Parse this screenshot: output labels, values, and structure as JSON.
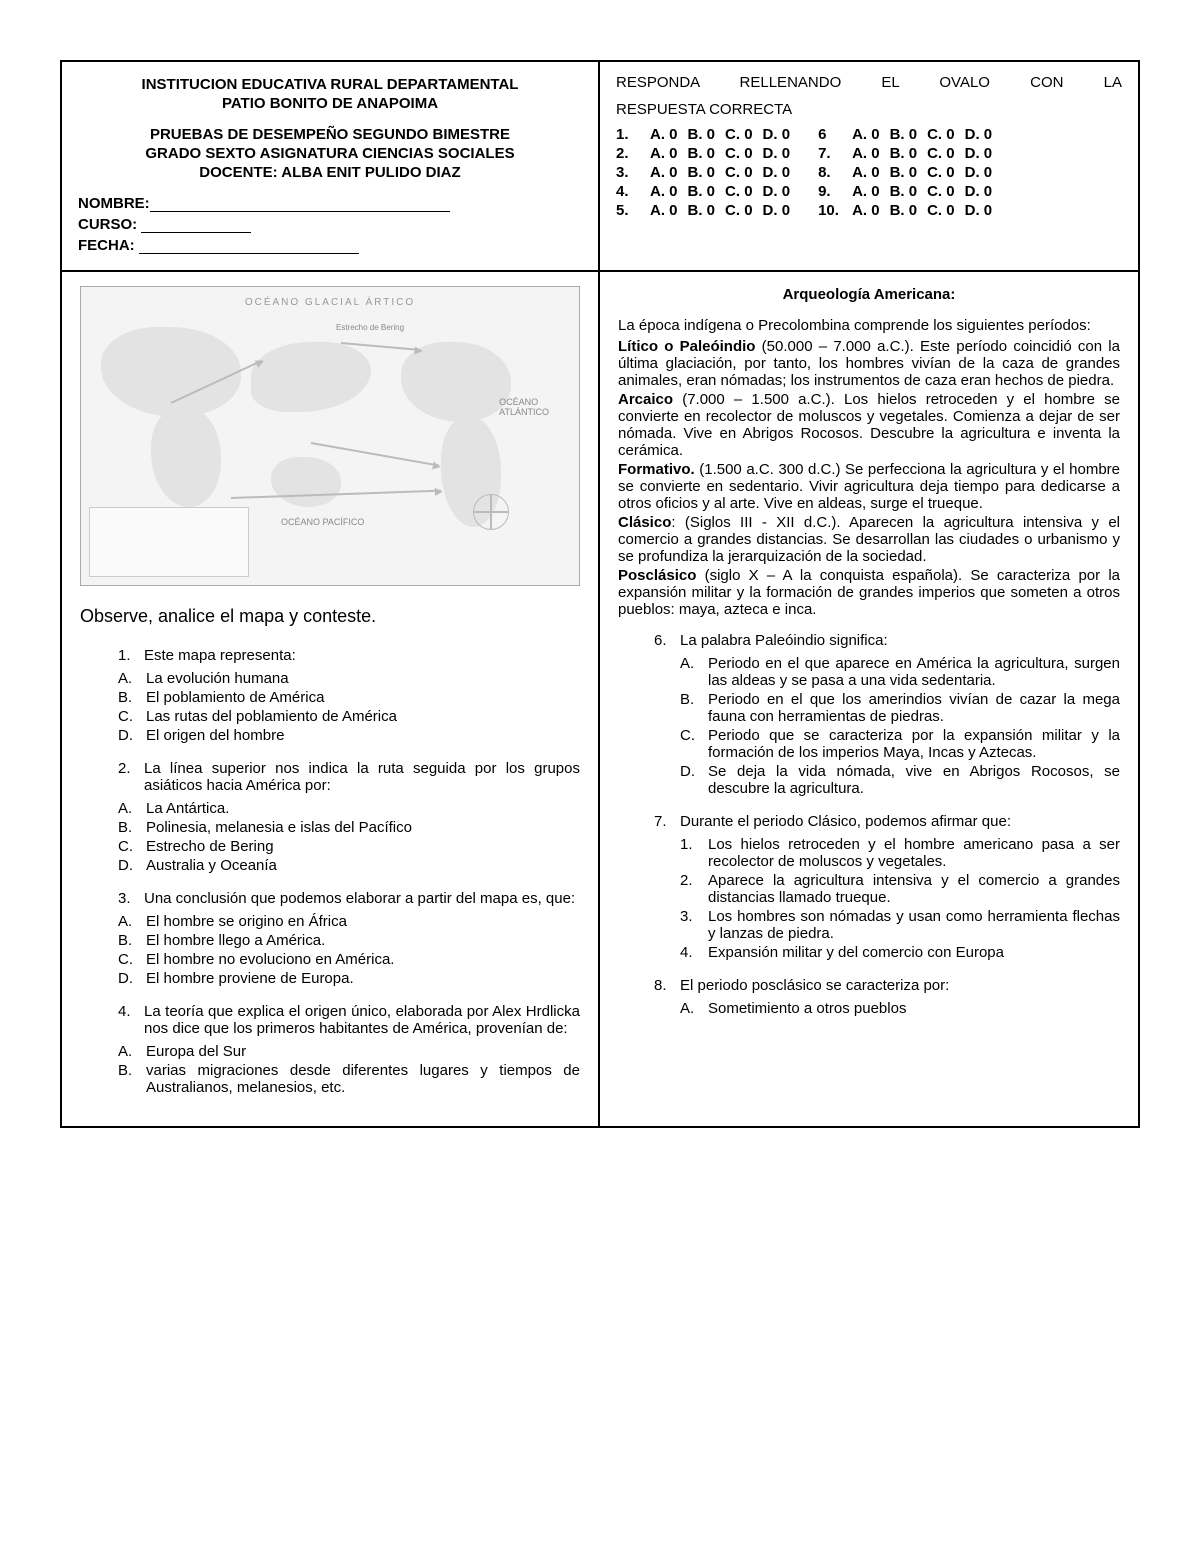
{
  "header": {
    "line1": "INSTITUCION EDUCATIVA RURAL DEPARTAMENTAL",
    "line2": "PATIO BONITO DE ANAPOIMA",
    "line3": "PRUEBAS DE DESEMPEÑO  SEGUNDO BIMESTRE",
    "line4": "GRADO SEXTO   ASIGNATURA  CIENCIAS SOCIALES",
    "line5": "DOCENTE: ALBA ENIT PULIDO DIAZ",
    "field_nombre": "NOMBRE:",
    "field_curso": "CURSO:",
    "field_fecha": "FECHA:"
  },
  "instructions": {
    "line1": "RESPONDA   RELLENANDO   EL   OVALO   CON   LA",
    "line2": "RESPUESTA CORRECTA"
  },
  "answer_sheet": {
    "left_rows": [
      "1.",
      "2.",
      "3.",
      "4.",
      "5."
    ],
    "right_rows": [
      "6",
      "7.",
      "8.",
      "9.",
      "10."
    ],
    "choices": [
      "A. 0",
      "B. 0",
      "C. 0",
      "D. 0"
    ]
  },
  "map": {
    "title": "OCÉANO GLACIAL ÁRTICO",
    "labels": {
      "atlantico": "OCÉANO\nATLÁNTICO",
      "pacifico": "OCÉANO PACÍFICO",
      "bering": "Estrecho de Bering"
    },
    "legend_text": ""
  },
  "left": {
    "prompt": "Observe, analice el mapa y conteste.",
    "questions": [
      {
        "num": "1.",
        "stem": "Este mapa representa:",
        "opts": [
          {
            "l": "A.",
            "t": "La evolución humana"
          },
          {
            "l": "B.",
            "t": "El poblamiento de América"
          },
          {
            "l": "C.",
            "t": "Las rutas del poblamiento de América"
          },
          {
            "l": "D.",
            "t": "El origen del hombre"
          }
        ]
      },
      {
        "num": "2.",
        "stem": "La línea superior nos indica la ruta seguida por los grupos asiáticos hacia América por:",
        "opts": [
          {
            "l": "A.",
            "t": "La Antártica."
          },
          {
            "l": "B.",
            "t": "Polinesia, melanesia e islas del Pacífico"
          },
          {
            "l": "C.",
            "t": "Estrecho de Bering"
          },
          {
            "l": "D.",
            "t": "Australia y Oceanía"
          }
        ]
      },
      {
        "num": "3.",
        "stem": "Una conclusión que  podemos elaborar a partir del mapa es, que:",
        "opts": [
          {
            "l": "A.",
            "t": "El hombre se origino en África"
          },
          {
            "l": "B.",
            "t": "El hombre llego a América."
          },
          {
            "l": "C.",
            "t": "El hombre no evoluciono en América."
          },
          {
            "l": "D.",
            "t": "El hombre proviene de Europa."
          }
        ]
      },
      {
        "num": "4.",
        "stem": "La teoría que explica el origen único,  elaborada por Alex Hrdlicka nos dice que los primeros habitantes de América, provenían de:",
        "opts": [
          {
            "l": "A.",
            "t": " Europa del Sur"
          },
          {
            "l": "B.",
            "t": "varias migraciones desde diferentes lugares y tiempos de Australianos, melanesios, etc."
          }
        ]
      }
    ]
  },
  "right": {
    "title": "Arqueología Americana:",
    "intro": "La época indígena o Precolombina comprende los siguientes períodos:",
    "periods": [
      {
        "name": "Lítico o  Paleóindio",
        "text": " (50.000 – 7.000 a.C.). Este período coincidió con la última glaciación, por tanto, los hombres vivían de la caza de grandes animales, eran nómadas; los instrumentos de caza eran hechos de piedra."
      },
      {
        "name": "Arcaico",
        "text": " (7.000 – 1.500 a.C.). Los hielos retroceden y el hombre se convierte en recolector de moluscos y vegetales. Comienza a dejar de ser nómada. Vive en Abrigos Rocosos. Descubre la agricultura e inventa la cerámica."
      },
      {
        "name": "Formativo.",
        "text": " (1.500 a.C. 300 d.C.) Se perfecciona la agricultura y el hombre se convierte en sedentario. Vivir agricultura deja tiempo para dedicarse a otros oficios y al arte. Vive en aldeas, surge el trueque."
      },
      {
        "name": "Clásico",
        "text": ": (Siglos III - XII d.C.). Aparecen la agricultura intensiva y el comercio a grandes distancias. Se desarrollan las ciudades o urbanismo y se profundiza la jerarquización de la sociedad."
      },
      {
        "name": "Posclásico",
        "text": " (siglo X – A la conquista española). Se caracteriza por la expansión militar y la formación de grandes imperios que someten a otros pueblos: maya, azteca e inca."
      }
    ],
    "questions": [
      {
        "num": "6.",
        "stem": "La palabra Paleóindio significa:",
        "opts": [
          {
            "l": "A.",
            "t": "Periodo en el que aparece en América la agricultura, surgen las aldeas y se pasa a una vida sedentaria."
          },
          {
            "l": "B.",
            "t": "Periodo en el que los amerindios vivían de cazar la mega fauna con herramientas de piedras."
          },
          {
            "l": "C.",
            "t": "Periodo que se caracteriza por la expansión militar y la formación de los imperios Maya, Incas y Aztecas."
          },
          {
            "l": "D.",
            "t": "Se deja la vida nómada, vive en Abrigos Rocosos, se descubre la agricultura."
          }
        ]
      },
      {
        "num": "7.",
        "stem": "Durante el periodo Clásico, podemos afirmar que:",
        "opts": [
          {
            "l": "1.",
            "t": "Los hielos retroceden y el hombre americano pasa a ser recolector de moluscos y vegetales."
          },
          {
            "l": "2.",
            "t": "Aparece la agricultura intensiva y el comercio a grandes distancias llamado trueque."
          },
          {
            "l": "3.",
            "t": "Los hombres son nómadas y usan como herramienta flechas  y lanzas de piedra."
          },
          {
            "l": "4.",
            "t": "Expansión militar y del comercio con Europa"
          }
        ]
      },
      {
        "num": "8.",
        "stem": "El periodo posclásico se caracteriza por:",
        "opts": [
          {
            "l": "A.",
            "t": "Sometimiento a otros pueblos"
          }
        ]
      }
    ]
  }
}
